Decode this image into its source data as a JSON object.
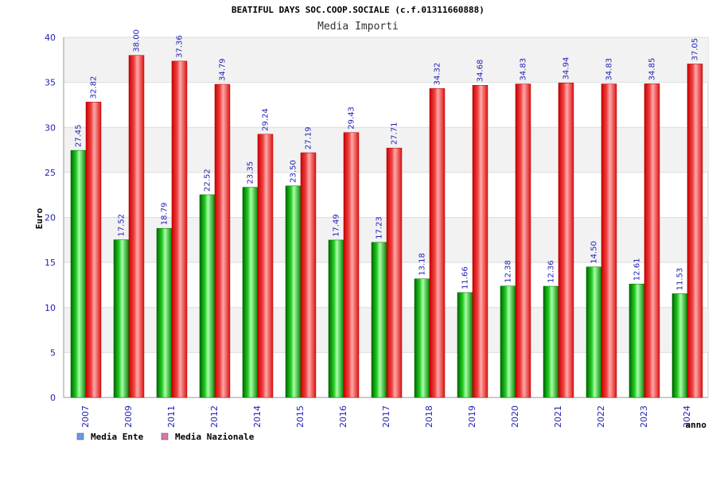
{
  "chart_data": {
    "type": "bar",
    "title": "BEATIFUL DAYS SOC.COOP.SOCIALE (c.f.01311660888)",
    "subtitle": "Media Importi",
    "xlabel": "anno",
    "ylabel": "Euro",
    "ylim": [
      0,
      40
    ],
    "yticks": [
      0,
      5,
      10,
      15,
      20,
      25,
      30,
      35,
      40
    ],
    "grid": true,
    "legend_position": "bottom-left",
    "categories": [
      "2007",
      "2009",
      "2011",
      "2012",
      "2014",
      "2015",
      "2016",
      "2017",
      "2018",
      "2019",
      "2020",
      "2021",
      "2022",
      "2023",
      "2024"
    ],
    "series": [
      {
        "name": "Media Ente",
        "color": "#00b000",
        "legend_color": "#6699ee",
        "values": [
          27.45,
          17.52,
          18.79,
          22.52,
          23.35,
          23.5,
          17.49,
          17.23,
          13.18,
          11.66,
          12.38,
          12.36,
          14.5,
          12.61,
          11.53
        ],
        "labels": [
          "27.45",
          "17.52",
          "18.79",
          "22.52",
          "23.35",
          "23.50",
          "17.49",
          "17.23",
          "13.18",
          "11.66",
          "12.38",
          "12.36",
          "14.50",
          "12.61",
          "11.53"
        ]
      },
      {
        "name": "Media Nazionale",
        "color": "#ee1111",
        "legend_color": "#dd77aa",
        "values": [
          32.82,
          38.0,
          37.36,
          34.79,
          29.24,
          27.19,
          29.43,
          27.71,
          34.32,
          34.68,
          34.83,
          34.94,
          34.83,
          34.85,
          37.05
        ],
        "labels": [
          "32.82",
          "38.00",
          "37.36",
          "34.79",
          "29.24",
          "27.19",
          "29.43",
          "27.71",
          "34.32",
          "34.68",
          "34.83",
          "34.94",
          "34.83",
          "34.85",
          "37.05"
        ]
      }
    ]
  }
}
